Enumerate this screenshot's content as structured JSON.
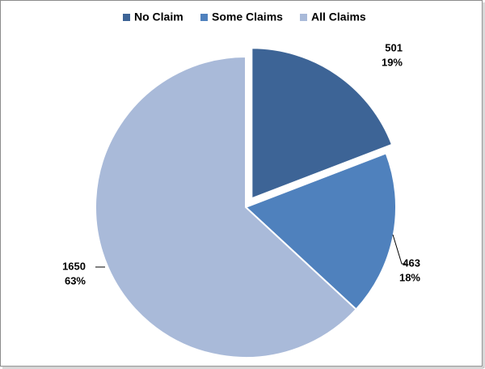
{
  "chart_data": {
    "type": "pie",
    "categories": [
      "No Claim",
      "Some Claims",
      "All Claims"
    ],
    "values": [
      501,
      463,
      1650
    ],
    "percent_labels": [
      "19%",
      "18%",
      "63%"
    ],
    "colors": [
      "#3d6496",
      "#4f81bd",
      "#a9bad9"
    ],
    "legend": "top"
  }
}
